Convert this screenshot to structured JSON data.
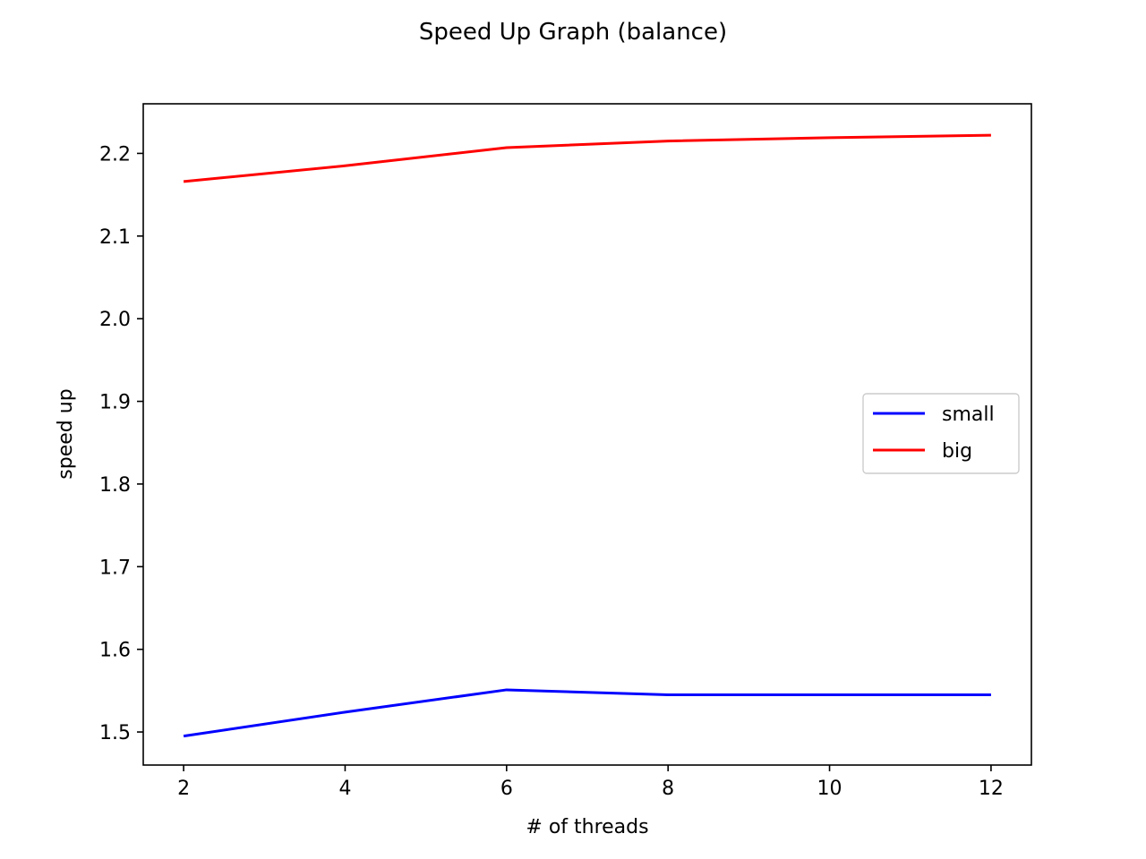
{
  "chart_data": {
    "type": "line",
    "title": "Speed Up Graph (balance)",
    "xlabel": "# of threads",
    "ylabel": "speed up",
    "x": [
      2,
      4,
      6,
      8,
      10,
      12
    ],
    "xlim": [
      1.5,
      12.5
    ],
    "ylim": [
      1.46,
      2.26
    ],
    "xticks": [
      2,
      4,
      6,
      8,
      10,
      12
    ],
    "xtick_labels": [
      "2",
      "4",
      "6",
      "8",
      "10",
      "12"
    ],
    "yticks": [
      1.5,
      1.6,
      1.7,
      1.8,
      1.9,
      2.0,
      2.1,
      2.2
    ],
    "ytick_labels": [
      "1.5",
      "1.6",
      "1.7",
      "1.8",
      "1.9",
      "2.0",
      "2.1",
      "2.2"
    ],
    "grid": false,
    "legend_position": "center-right",
    "series": [
      {
        "name": "small",
        "color": "#0000ff",
        "values": [
          1.495,
          1.524,
          1.551,
          1.545,
          1.545,
          1.545
        ]
      },
      {
        "name": "big",
        "color": "#ff0000",
        "values": [
          2.166,
          2.185,
          2.207,
          2.215,
          2.219,
          2.222
        ]
      }
    ]
  }
}
